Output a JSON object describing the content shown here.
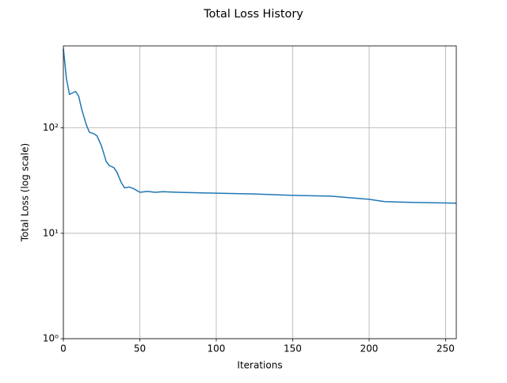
{
  "chart_data": {
    "type": "line",
    "title": "Total Loss History",
    "x_label": "Iterations",
    "y_label": "Total Loss (log scale)",
    "y_scale": "log",
    "grid": true,
    "xlim": [
      0,
      257
    ],
    "xticks": [
      0,
      50,
      100,
      150,
      200,
      250
    ],
    "ylim": [
      1,
      600
    ],
    "yticks": [
      {
        "value": 1,
        "label": "10⁰"
      },
      {
        "value": 10,
        "label": "10¹"
      },
      {
        "value": 100,
        "label": "10²"
      }
    ],
    "series": [
      {
        "name": "Total Loss",
        "color": "#1f77b4",
        "x": [
          0,
          2,
          4,
          6,
          8,
          10,
          12,
          15,
          17,
          20,
          22,
          25,
          28,
          30,
          33,
          35,
          38,
          40,
          43,
          46,
          50,
          55,
          60,
          65,
          75,
          100,
          125,
          150,
          175,
          200,
          210,
          225,
          257
        ],
        "values": [
          565,
          293,
          208,
          215,
          222,
          200,
          150,
          107,
          91,
          88,
          84,
          67,
          48,
          44,
          42,
          38,
          30,
          27,
          27.5,
          26.5,
          24.5,
          25,
          24.5,
          24.8,
          24.5,
          24,
          23.6,
          22.9,
          22.5,
          21,
          20,
          19.7,
          19.3
        ]
      }
    ]
  }
}
